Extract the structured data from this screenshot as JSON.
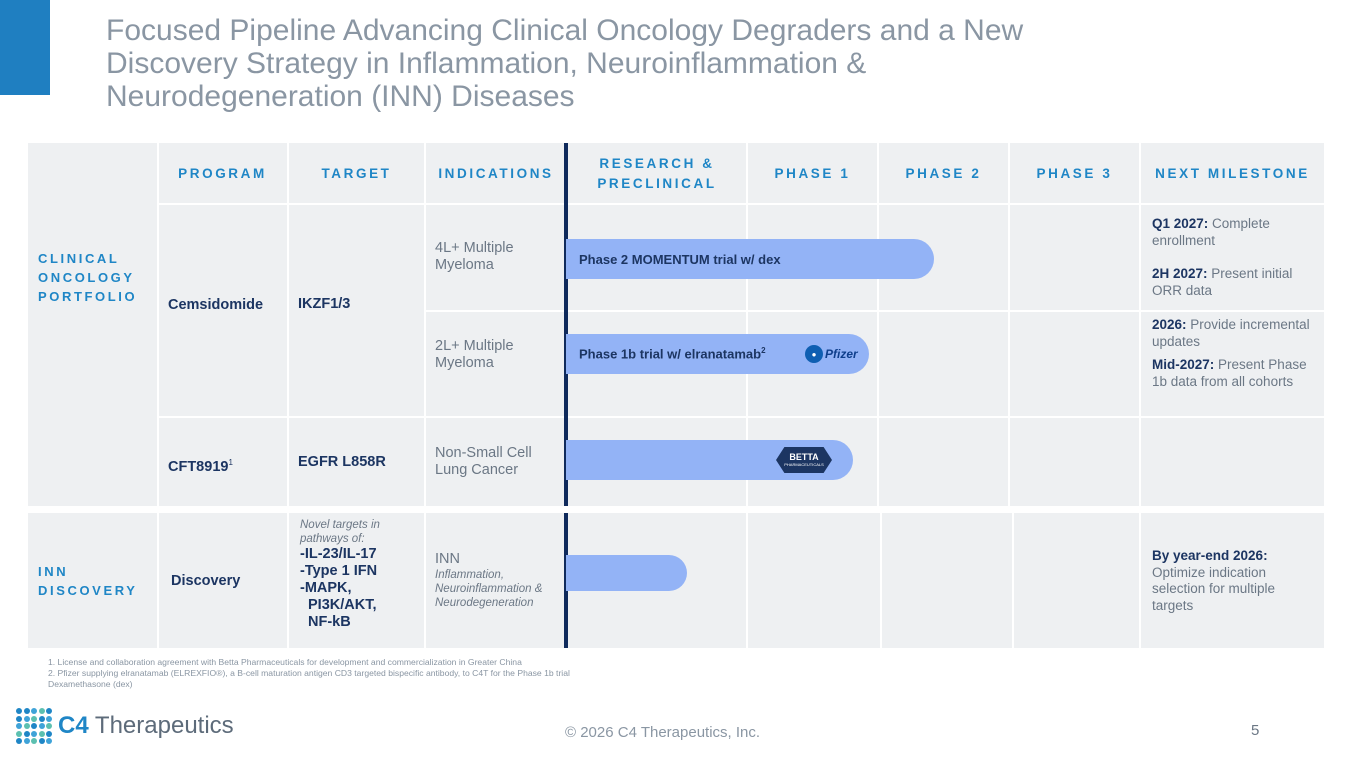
{
  "title": {
    "line1": "Focused Pipeline Advancing Clinical Oncology Degraders and a New",
    "line2": "Discovery Strategy in Inflammation, Neuroinflammation &",
    "line3": "Neurodegeneration (INN) Diseases"
  },
  "headers": {
    "program": "PROGRAM",
    "target": "TARGET",
    "indications": "INDICATIONS",
    "research_line1": "RESEARCH &",
    "research_line2": "PRECLINICAL",
    "phase1": "PHASE 1",
    "phase2": "PHASE 2",
    "phase3": "PHASE 3",
    "next_milestone": "NEXT MILESTONE"
  },
  "sections": {
    "clinical": [
      "CLINICAL",
      "ONCOLOGY",
      "PORTFOLIO"
    ],
    "inn": [
      "INN",
      "DISCOVERY"
    ]
  },
  "rows": {
    "cemsidomide": {
      "program": "Cemsidomide",
      "target": "IKZF1/3",
      "ind1": [
        "4L+ Multiple",
        "Myeloma"
      ],
      "bar1": "Phase 2 MOMENTUM trial w/ dex",
      "ms1_a_bold": "Q1 2027:",
      "ms1_a_text": " Complete enrollment",
      "ms1_b_bold": "2H 2027:",
      "ms1_b_text": " Present initial ORR data",
      "ind2": [
        "2L+ Multiple",
        "Myeloma"
      ],
      "bar2": "Phase 1b trial w/ elranatamab",
      "bar2_sup": "2",
      "ms2_a_bold": "2026:",
      "ms2_a_text": " Provide incremental updates",
      "ms2_b_bold": "Mid-2027:",
      "ms2_b_text": " Present Phase 1b data from all cohorts"
    },
    "cft8919": {
      "program": "CFT8919",
      "program_sup": "1",
      "target": "EGFR L858R",
      "ind": [
        "Non-Small Cell",
        "Lung Cancer"
      ]
    },
    "discovery": {
      "program": "Discovery",
      "target_intro": [
        "Novel targets in",
        "pathways of:"
      ],
      "targets": [
        "-IL-23/IL-17",
        "-Type 1 IFN",
        "-MAPK,",
        "PI3K/AKT,",
        "NF-kB"
      ],
      "ind_main": "INN",
      "ind_sub": [
        "Inflammation,",
        "Neuroinflammation &",
        "Neurodegeneration"
      ],
      "ms_bold": "By year-end 2026:",
      "ms_text": "Optimize indication selection for multiple targets"
    }
  },
  "partner_logos": {
    "pfizer": "Pfizer",
    "betta_line1": "BETTA",
    "betta_line2": "PHARMACEUTICALS"
  },
  "footnotes": [
    "1. License and collaboration agreement with Betta Pharmaceuticals for development and commercialization in Greater China",
    "2. Pfizer supplying elranatamab (ELREXFIO®), a B-cell maturation antigen CD3 targeted bispecific antibody, to C4T for the Phase 1b trial",
    "Dexamethasone (dex)"
  ],
  "logo": {
    "c4": "C4",
    "name": " Therapeutics"
  },
  "copyright": "© 2026 C4 Therapeutics, Inc.",
  "page_number": "5",
  "colors": {
    "accent": "#1f7fc1",
    "navy": "#1c3562",
    "bar": "#93b3f6",
    "panel": "#eef0f2"
  }
}
